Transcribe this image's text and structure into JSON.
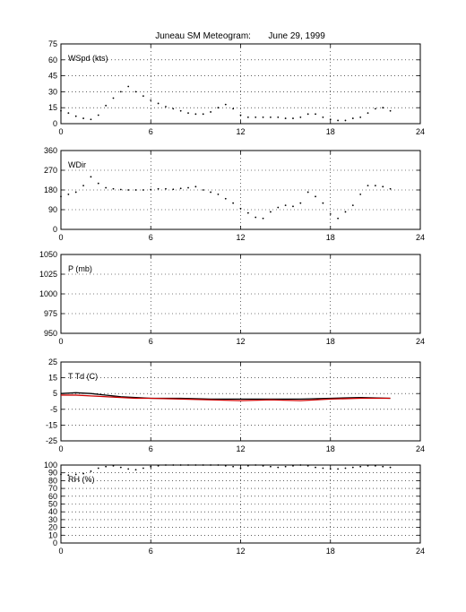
{
  "title": "Juneau SM Meteogram:       June 29, 1999",
  "chart_data": [
    {
      "type": "scatter",
      "label": "WSpd (kts)",
      "xlim": [
        0,
        24
      ],
      "ylim": [
        0,
        75
      ],
      "xticks": [
        0,
        6,
        12,
        18,
        24
      ],
      "yticks": [
        0,
        15,
        30,
        45,
        60,
        75
      ],
      "grid": true,
      "series": [
        {
          "color": "#000000",
          "x": [
            0,
            0.5,
            1,
            1.5,
            2,
            2.5,
            3,
            3.5,
            4,
            4.5,
            5,
            5.5,
            6,
            6.5,
            7,
            7.5,
            8,
            8.5,
            9,
            9.5,
            10,
            10.5,
            11,
            11.5,
            12,
            12.5,
            13,
            13.5,
            14,
            14.5,
            15,
            15.5,
            16,
            16.5,
            17,
            17.5,
            18,
            18.5,
            19,
            19.5,
            20,
            20.5,
            21,
            21.5,
            22
          ],
          "y": [
            12,
            10,
            7,
            5,
            4,
            8,
            17,
            24,
            30,
            35,
            30,
            26,
            22,
            19,
            16,
            14,
            12,
            10,
            9,
            9,
            11,
            15,
            18,
            14,
            8,
            6,
            6,
            6,
            6,
            6,
            5,
            5,
            6,
            9,
            9,
            6,
            4,
            3,
            3,
            5,
            6,
            10,
            14,
            15,
            12
          ]
        }
      ]
    },
    {
      "type": "scatter",
      "label": "WDir",
      "xlim": [
        0,
        24
      ],
      "ylim": [
        0,
        360
      ],
      "xticks": [
        0,
        6,
        12,
        18,
        24
      ],
      "yticks": [
        0,
        90,
        180,
        270,
        360
      ],
      "grid": true,
      "series": [
        {
          "color": "#000000",
          "x": [
            0,
            0.5,
            1,
            1.5,
            2,
            2.5,
            3,
            3.5,
            4,
            4.5,
            5,
            5.5,
            6,
            6.5,
            7,
            7.5,
            8,
            8.5,
            9,
            9.5,
            10,
            10.5,
            11,
            11.5,
            12,
            12.5,
            13,
            13.5,
            14,
            14.5,
            15,
            15.5,
            16,
            16.5,
            17,
            17.5,
            18,
            18.5,
            19,
            19.5,
            20,
            20.5,
            21,
            21.5,
            22
          ],
          "y": [
            150,
            160,
            170,
            200,
            240,
            210,
            190,
            185,
            182,
            180,
            180,
            180,
            182,
            185,
            185,
            183,
            187,
            190,
            195,
            180,
            170,
            160,
            140,
            120,
            95,
            75,
            55,
            50,
            80,
            100,
            110,
            105,
            120,
            170,
            150,
            120,
            70,
            50,
            80,
            110,
            160,
            200,
            200,
            195,
            185
          ]
        }
      ]
    },
    {
      "type": "scatter",
      "label": "P (mb)",
      "xlim": [
        0,
        24
      ],
      "ylim": [
        950,
        1050
      ],
      "xticks": [
        0,
        6,
        12,
        18,
        24
      ],
      "yticks": [
        950,
        975,
        1000,
        1025,
        1050
      ],
      "grid": true,
      "series": []
    },
    {
      "type": "line",
      "label": "T Td (C)",
      "xlim": [
        0,
        24
      ],
      "ylim": [
        -25,
        25
      ],
      "xticks": [
        0,
        6,
        12,
        18,
        24
      ],
      "yticks": [
        -25,
        -15,
        -5,
        5,
        15,
        25
      ],
      "grid": true,
      "series": [
        {
          "color": "#000000",
          "x": [
            0,
            1,
            2,
            3,
            4,
            5,
            6,
            8,
            10,
            12,
            14,
            16,
            18,
            20,
            22
          ],
          "y": [
            5,
            5.5,
            5,
            4,
            3,
            2.5,
            2,
            2,
            1.5,
            1.5,
            1.5,
            1.5,
            2,
            2.5,
            2
          ]
        },
        {
          "color": "#cc0000",
          "x": [
            0,
            1,
            2,
            3,
            4,
            5,
            6,
            8,
            10,
            12,
            14,
            16,
            18,
            20,
            22
          ],
          "y": [
            4,
            4,
            3.5,
            3,
            2.5,
            2,
            2,
            1.5,
            1,
            0.5,
            1,
            0.5,
            1.5,
            2,
            2
          ]
        }
      ]
    },
    {
      "type": "scatter",
      "label": "RH (%)",
      "xlim": [
        0,
        24
      ],
      "ylim": [
        0,
        100
      ],
      "xticks": [
        0,
        6,
        12,
        18,
        24
      ],
      "yticks": [
        0,
        10,
        20,
        30,
        40,
        50,
        60,
        70,
        80,
        90,
        100
      ],
      "grid": true,
      "series": [
        {
          "color": "#000000",
          "x": [
            0,
            0.5,
            1,
            1.5,
            2,
            2.5,
            3,
            3.5,
            4,
            4.5,
            5,
            5.5,
            6,
            6.5,
            7,
            7.5,
            8,
            8.5,
            9,
            9.5,
            10,
            10.5,
            11,
            11.5,
            12,
            12.5,
            13,
            13.5,
            14,
            14.5,
            15,
            15.5,
            16,
            16.5,
            17,
            17.5,
            18,
            18.5,
            19,
            19.5,
            20,
            20.5,
            21,
            21.5,
            22
          ],
          "y": [
            88,
            87,
            88,
            89,
            92,
            96,
            98,
            99,
            97,
            95,
            94,
            96,
            98,
            99,
            100,
            100,
            100,
            100,
            100,
            100,
            100,
            100,
            99,
            98,
            96,
            99,
            100,
            99,
            98,
            97,
            98,
            99,
            100,
            99,
            97,
            96,
            95,
            95,
            96,
            97,
            98,
            99,
            99,
            98,
            97
          ]
        }
      ]
    }
  ]
}
